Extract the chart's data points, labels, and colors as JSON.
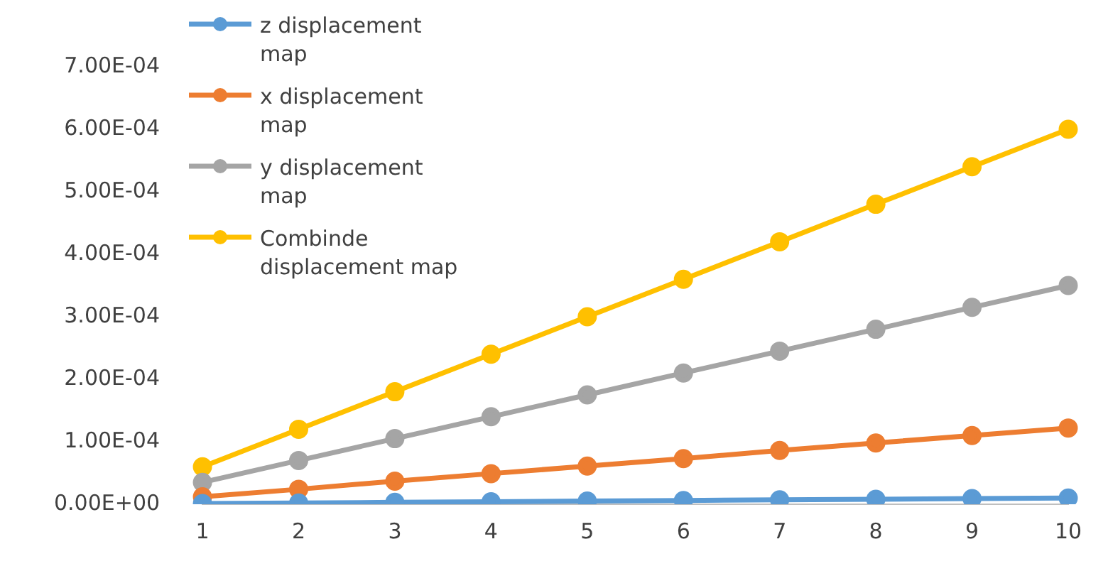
{
  "chart_data": {
    "type": "line",
    "categories": [
      "1",
      "2",
      "3",
      "4",
      "5",
      "6",
      "7",
      "8",
      "9",
      "10"
    ],
    "series": [
      {
        "name": "z displacement map",
        "color": "#5b9bd5",
        "values": [
          1e-06,
          2e-06,
          3e-06,
          4e-06,
          5e-06,
          6e-06,
          7e-06,
          8e-06,
          9e-06,
          1e-05
        ]
      },
      {
        "name": "x displacement map",
        "color": "#ed7d31",
        "values": [
          1.2e-05,
          2.4e-05,
          3.7e-05,
          4.9e-05,
          6.1e-05,
          7.3e-05,
          8.6e-05,
          9.8e-05,
          0.00011,
          0.000122
        ]
      },
      {
        "name": "y displacement map",
        "color": "#a5a5a5",
        "values": [
          3.5e-05,
          7e-05,
          0.000105,
          0.00014,
          0.000175,
          0.00021,
          0.000245,
          0.00028,
          0.000315,
          0.00035
        ]
      },
      {
        "name": "Combinde displacement map",
        "color": "#ffc000",
        "values": [
          6e-05,
          0.00012,
          0.00018,
          0.00024,
          0.0003,
          0.00036,
          0.00042,
          0.00048,
          0.00054,
          0.0006
        ]
      }
    ],
    "ylim": [
      0,
      0.0007
    ],
    "yticks": [
      {
        "value": 0,
        "label": "0.00E+00"
      },
      {
        "value": 0.0001,
        "label": "1.00E-04"
      },
      {
        "value": 0.0002,
        "label": "2.00E-04"
      },
      {
        "value": 0.0003,
        "label": "3.00E-04"
      },
      {
        "value": 0.0004,
        "label": "4.00E-04"
      },
      {
        "value": 0.0005,
        "label": "5.00E-04"
      },
      {
        "value": 0.0006,
        "label": "6.00E-04"
      },
      {
        "value": 0.0007,
        "label": "7.00E-04"
      }
    ],
    "grid": false,
    "legend": "top left",
    "marker": "circle",
    "line_style": "solid"
  }
}
